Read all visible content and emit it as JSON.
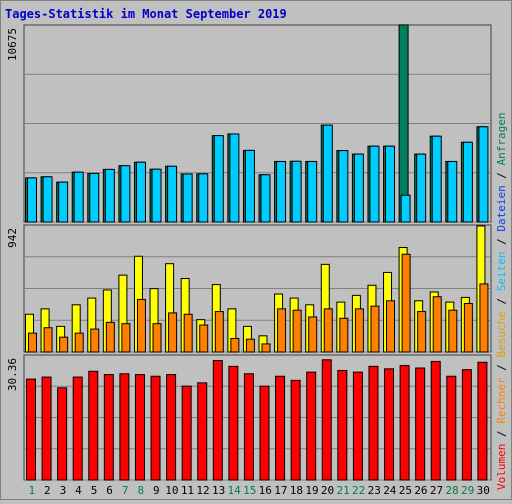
{
  "chart_data": {
    "type": "bar",
    "title": "Tages-Statistik im Monat September 2019",
    "categories": [
      "1",
      "2",
      "3",
      "4",
      "5",
      "6",
      "7",
      "8",
      "9",
      "10",
      "11",
      "12",
      "13",
      "14",
      "15",
      "16",
      "17",
      "18",
      "19",
      "20",
      "21",
      "22",
      "23",
      "24",
      "25",
      "26",
      "27",
      "28",
      "29",
      "30"
    ],
    "weekend_days": [
      "1",
      "7",
      "8",
      "14",
      "15",
      "21",
      "22",
      "28",
      "29"
    ],
    "colors": {
      "title": "#0000cc",
      "weekday_tick": "#000000",
      "weekend_tick": "#008040",
      "background": "#c0c0c0",
      "gridline": "#808080",
      "anfragen": "#00805c",
      "dateien": "#00ccff",
      "seiten": "#00ffff",
      "besuche": "#ffff00",
      "rechner": "#ff8000",
      "volumen": "#ff0000",
      "axis_anfragen": "#00805c",
      "axis_dateien": "#0040ff",
      "axis_seiten": "#00c0ff",
      "axis_besuche": "#e0a000",
      "axis_rechner": "#ff8000",
      "axis_volumen": "#ff0000",
      "axis_separator": "#000000"
    },
    "panels": [
      {
        "id": "hits",
        "max_label": "10675",
        "max": 10675,
        "series": [
          {
            "name": "Anfragen",
            "values": [
              2390,
              2450,
              2160,
              2700,
              2630,
              2850,
              3050,
              3240,
              2860,
              3020,
              2600,
              2610,
              4680,
              4770,
              3880,
              2560,
              3280,
              3290,
              3280,
              5250,
              3870,
              3680,
              4110,
              4110,
              10680,
              3680,
              4650,
              3280,
              4320,
              5160
            ]
          },
          {
            "name": "Dateien",
            "values": [
              2390,
              2450,
              2160,
              2700,
              2630,
              2850,
              3050,
              3240,
              2860,
              3020,
              2600,
              2610,
              4680,
              4770,
              3880,
              2560,
              3280,
              3290,
              3280,
              5250,
              3870,
              3680,
              4110,
              4110,
              1450,
              3680,
              4650,
              3280,
              4320,
              5160
            ]
          }
        ]
      },
      {
        "id": "visits",
        "max_label": "942",
        "max": 942,
        "series": [
          {
            "name": "Besuche",
            "values": [
              280,
              320,
              190,
              350,
              400,
              460,
              570,
              710,
              470,
              655,
              545,
              240,
              500,
              320,
              190,
              120,
              430,
              400,
              350,
              650,
              370,
              420,
              495,
              590,
              775,
              380,
              445,
              370,
              405,
              935
            ]
          },
          {
            "name": "Rechner",
            "values": [
              140,
              180,
              110,
              140,
              170,
              220,
              210,
              390,
              210,
              290,
              280,
              200,
              300,
              100,
              95,
              60,
              320,
              310,
              260,
              320,
              250,
              320,
              340,
              380,
              725,
              300,
              410,
              310,
              360,
              505
            ]
          }
        ]
      },
      {
        "id": "volume",
        "max_label": "30.36",
        "max": 30.36,
        "series": [
          {
            "name": "Volumen",
            "values": [
              24.5,
              25.0,
              22.4,
              25.0,
              26.4,
              25.6,
              25.8,
              25.6,
              25.2,
              25.6,
              22.8,
              23.6,
              29.0,
              27.6,
              25.8,
              22.8,
              25.2,
              24.2,
              26.2,
              29.2,
              26.6,
              26.2,
              27.6,
              27.0,
              27.8,
              27.2,
              28.8,
              25.2,
              26.8,
              28.6
            ]
          }
        ]
      }
    ],
    "axis_legend": [
      {
        "text": "Volumen",
        "color_key": "axis_volumen"
      },
      {
        "text": " / ",
        "color_key": "axis_separator"
      },
      {
        "text": "Rechner",
        "color_key": "axis_rechner"
      },
      {
        "text": " / ",
        "color_key": "axis_separator"
      },
      {
        "text": "Besuche",
        "color_key": "axis_besuche"
      },
      {
        "text": " / ",
        "color_key": "axis_separator"
      },
      {
        "text": "Seiten",
        "color_key": "axis_seiten"
      },
      {
        "text": " / ",
        "color_key": "axis_separator"
      },
      {
        "text": "Dateien",
        "color_key": "axis_dateien"
      },
      {
        "text": " / ",
        "color_key": "axis_separator"
      },
      {
        "text": "Anfragen",
        "color_key": "axis_anfragen"
      }
    ]
  }
}
